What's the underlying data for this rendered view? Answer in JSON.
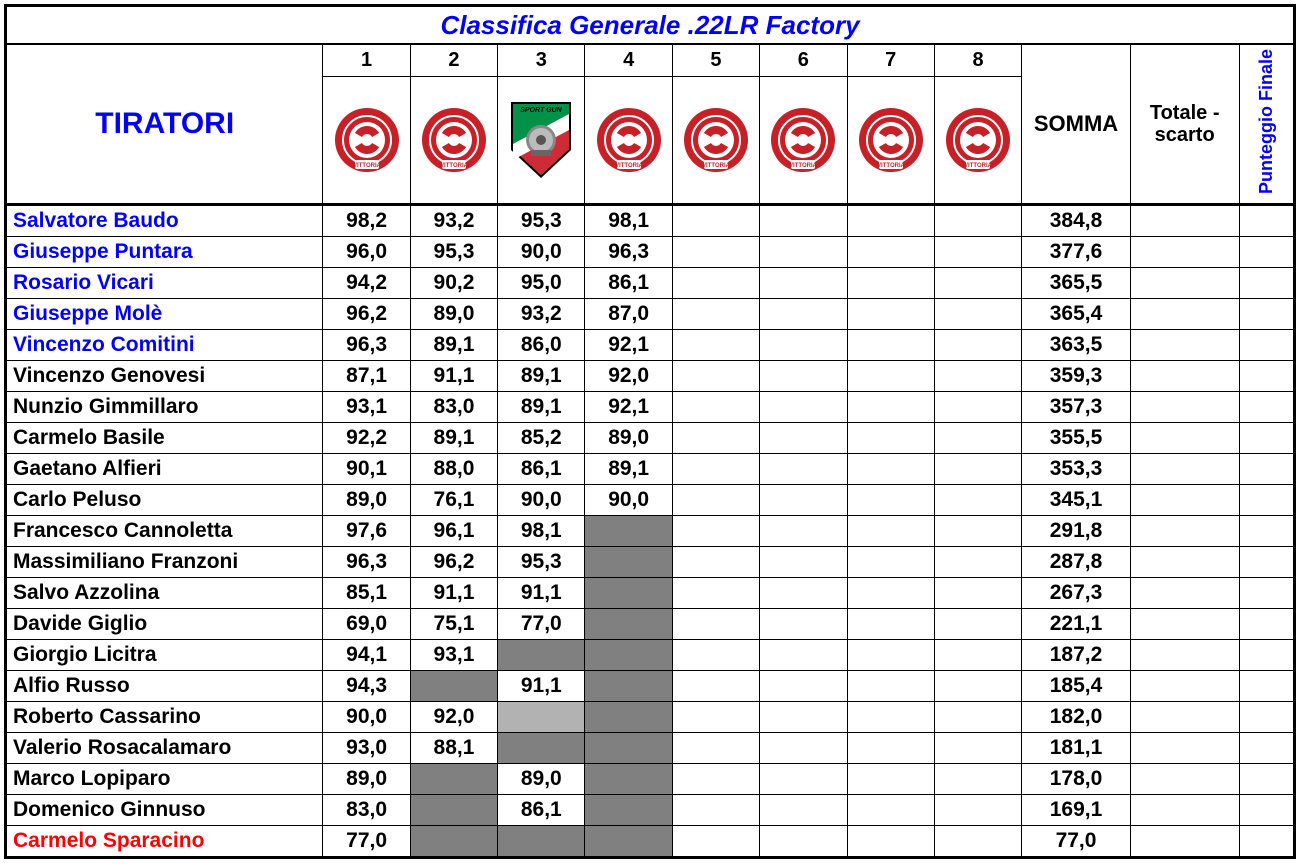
{
  "title": "Classifica Generale .22LR Factory",
  "headers": {
    "shooters": "TIRATORI",
    "rounds": [
      "1",
      "2",
      "3",
      "4",
      "5",
      "6",
      "7",
      "8"
    ],
    "somma": "SOMMA",
    "scarto": "Totale - scarto",
    "finale": "Punteggio Finale"
  },
  "badge_types": [
    "red",
    "red",
    "shield",
    "red",
    "red",
    "red",
    "red",
    "red"
  ],
  "colors": {
    "blue": "#0000ff",
    "black": "#000000",
    "red": "#ff0000",
    "grey_dark": "#808080",
    "grey_light": "#b2b2b2",
    "badge_red": "#c72127",
    "badge_white": "#ffffff",
    "shield_green": "#009246",
    "shield_red": "#ce2b37",
    "shield_yellow": "#ffd200"
  },
  "rows": [
    {
      "name": "Salvatore Baudo",
      "name_color": "#0000ff",
      "scores": [
        "98,2",
        "93,2",
        "95,3",
        "98,1",
        "",
        "",
        "",
        ""
      ],
      "somma": "384,8",
      "scarto": "",
      "finale": ""
    },
    {
      "name": "Giuseppe Puntara",
      "name_color": "#0000ff",
      "scores": [
        "96,0",
        "95,3",
        "90,0",
        "96,3",
        "",
        "",
        "",
        ""
      ],
      "somma": "377,6",
      "scarto": "",
      "finale": ""
    },
    {
      "name": "Rosario Vicari",
      "name_color": "#0000ff",
      "scores": [
        "94,2",
        "90,2",
        "95,0",
        "86,1",
        "",
        "",
        "",
        ""
      ],
      "somma": "365,5",
      "scarto": "",
      "finale": ""
    },
    {
      "name": "Giuseppe Molè",
      "name_color": "#0000ff",
      "scores": [
        "96,2",
        "89,0",
        "93,2",
        "87,0",
        "",
        "",
        "",
        ""
      ],
      "somma": "365,4",
      "scarto": "",
      "finale": ""
    },
    {
      "name": "Vincenzo Comitini",
      "name_color": "#0000ff",
      "scores": [
        "96,3",
        "89,1",
        "86,0",
        "92,1",
        "",
        "",
        "",
        ""
      ],
      "somma": "363,5",
      "scarto": "",
      "finale": ""
    },
    {
      "name": "Vincenzo Genovesi",
      "name_color": "#000000",
      "scores": [
        "87,1",
        "91,1",
        "89,1",
        "92,0",
        "",
        "",
        "",
        ""
      ],
      "somma": "359,3",
      "scarto": "",
      "finale": ""
    },
    {
      "name": "Nunzio Gimmillaro",
      "name_color": "#000000",
      "scores": [
        "93,1",
        "83,0",
        "89,1",
        "92,1",
        "",
        "",
        "",
        ""
      ],
      "somma": "357,3",
      "scarto": "",
      "finale": ""
    },
    {
      "name": "Carmelo Basile",
      "name_color": "#000000",
      "scores": [
        "92,2",
        "89,1",
        "85,2",
        "89,0",
        "",
        "",
        "",
        ""
      ],
      "somma": "355,5",
      "scarto": "",
      "finale": ""
    },
    {
      "name": "Gaetano Alfieri",
      "name_color": "#000000",
      "scores": [
        "90,1",
        "88,0",
        "86,1",
        "89,1",
        "",
        "",
        "",
        ""
      ],
      "somma": "353,3",
      "scarto": "",
      "finale": ""
    },
    {
      "name": "Carlo Peluso",
      "name_color": "#000000",
      "scores": [
        "89,0",
        "76,1",
        "90,0",
        "90,0",
        "",
        "",
        "",
        ""
      ],
      "somma": "345,1",
      "scarto": "",
      "finale": ""
    },
    {
      "name": "Francesco Cannoletta",
      "name_color": "#000000",
      "scores": [
        "97,6",
        "96,1",
        "98,1",
        null,
        "",
        "",
        "",
        ""
      ],
      "grey": {
        "3": "dark"
      },
      "somma": "291,8",
      "scarto": "",
      "finale": ""
    },
    {
      "name": "Massimiliano Franzoni",
      "name_color": "#000000",
      "scores": [
        "96,3",
        "96,2",
        "95,3",
        null,
        "",
        "",
        "",
        ""
      ],
      "grey": {
        "3": "dark"
      },
      "somma": "287,8",
      "scarto": "",
      "finale": ""
    },
    {
      "name": "Salvo Azzolina",
      "name_color": "#000000",
      "scores": [
        "85,1",
        "91,1",
        "91,1",
        null,
        "",
        "",
        "",
        ""
      ],
      "grey": {
        "3": "dark"
      },
      "somma": "267,3",
      "scarto": "",
      "finale": ""
    },
    {
      "name": "Davide Giglio",
      "name_color": "#000000",
      "scores": [
        "69,0",
        "75,1",
        "77,0",
        null,
        "",
        "",
        "",
        ""
      ],
      "grey": {
        "3": "dark"
      },
      "somma": "221,1",
      "scarto": "",
      "finale": ""
    },
    {
      "name": "Giorgio Licitra",
      "name_color": "#000000",
      "scores": [
        "94,1",
        "93,1",
        null,
        null,
        "",
        "",
        "",
        ""
      ],
      "grey": {
        "2": "dark",
        "3": "dark"
      },
      "somma": "187,2",
      "scarto": "",
      "finale": ""
    },
    {
      "name": "Alfio Russo",
      "name_color": "#000000",
      "scores": [
        "94,3",
        null,
        "91,1",
        null,
        "",
        "",
        "",
        ""
      ],
      "grey": {
        "1": "dark",
        "3": "dark"
      },
      "somma": "185,4",
      "scarto": "",
      "finale": ""
    },
    {
      "name": "Roberto Cassarino",
      "name_color": "#000000",
      "scores": [
        "90,0",
        "92,0",
        null,
        null,
        "",
        "",
        "",
        ""
      ],
      "grey": {
        "2": "light",
        "3": "dark"
      },
      "somma": "182,0",
      "scarto": "",
      "finale": ""
    },
    {
      "name": "Valerio Rosacalamaro",
      "name_color": "#000000",
      "scores": [
        "93,0",
        "88,1",
        null,
        null,
        "",
        "",
        "",
        ""
      ],
      "grey": {
        "2": "dark",
        "3": "dark"
      },
      "somma": "181,1",
      "scarto": "",
      "finale": ""
    },
    {
      "name": "Marco Lopiparo",
      "name_color": "#000000",
      "scores": [
        "89,0",
        null,
        "89,0",
        null,
        "",
        "",
        "",
        ""
      ],
      "grey": {
        "1": "dark",
        "3": "dark"
      },
      "somma": "178,0",
      "scarto": "",
      "finale": ""
    },
    {
      "name": "Domenico Ginnuso",
      "name_color": "#000000",
      "scores": [
        "83,0",
        null,
        "86,1",
        null,
        "",
        "",
        "",
        ""
      ],
      "grey": {
        "1": "dark",
        "3": "dark"
      },
      "somma": "169,1",
      "scarto": "",
      "finale": ""
    },
    {
      "name": "Carmelo Sparacino",
      "name_color": "#ff0000",
      "scores": [
        "77,0",
        null,
        null,
        null,
        "",
        "",
        "",
        ""
      ],
      "grey": {
        "1": "dark",
        "2": "dark",
        "3": "dark"
      },
      "somma": "77,0",
      "scarto": "",
      "finale": ""
    }
  ]
}
